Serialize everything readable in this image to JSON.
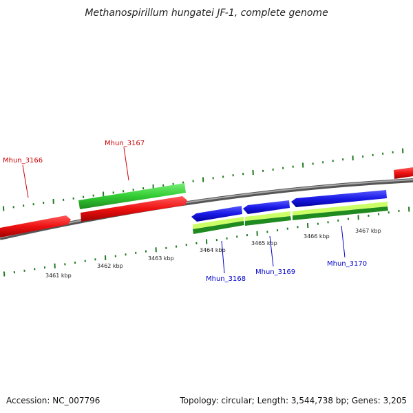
{
  "title": "Methanospirillum hungatei JF-1, complete genome",
  "footer": {
    "accession": "Accession: NC_007796",
    "summary": "Topology: circular; Length: 3,544,738 bp; Genes: 3,205"
  },
  "colors": {
    "backbone": "#808080",
    "tick": "#1f7a1f",
    "forward_cds": "#ee1111",
    "reverse_cds": "#1a1ae6",
    "forward_gene": "#33cc33",
    "reverse_gene_light": "#ccff66",
    "reverse_gene_dark": "#1f8a1f",
    "forward_label": "#cc0000",
    "reverse_label": "#0000cc"
  },
  "scale_labels": [
    "3461 kbp",
    "3462 kbp",
    "3463 kbp",
    "3464 kbp",
    "3465 kbp",
    "3466 kbp",
    "3467 kbp"
  ],
  "genes": [
    {
      "locus": "Mhun_3166",
      "strand": "forward"
    },
    {
      "locus": "Mhun_3167",
      "strand": "forward"
    },
    {
      "locus": "Mhun_3168",
      "strand": "reverse"
    },
    {
      "locus": "Mhun_3169",
      "strand": "reverse"
    },
    {
      "locus": "Mhun_3170",
      "strand": "reverse"
    }
  ]
}
